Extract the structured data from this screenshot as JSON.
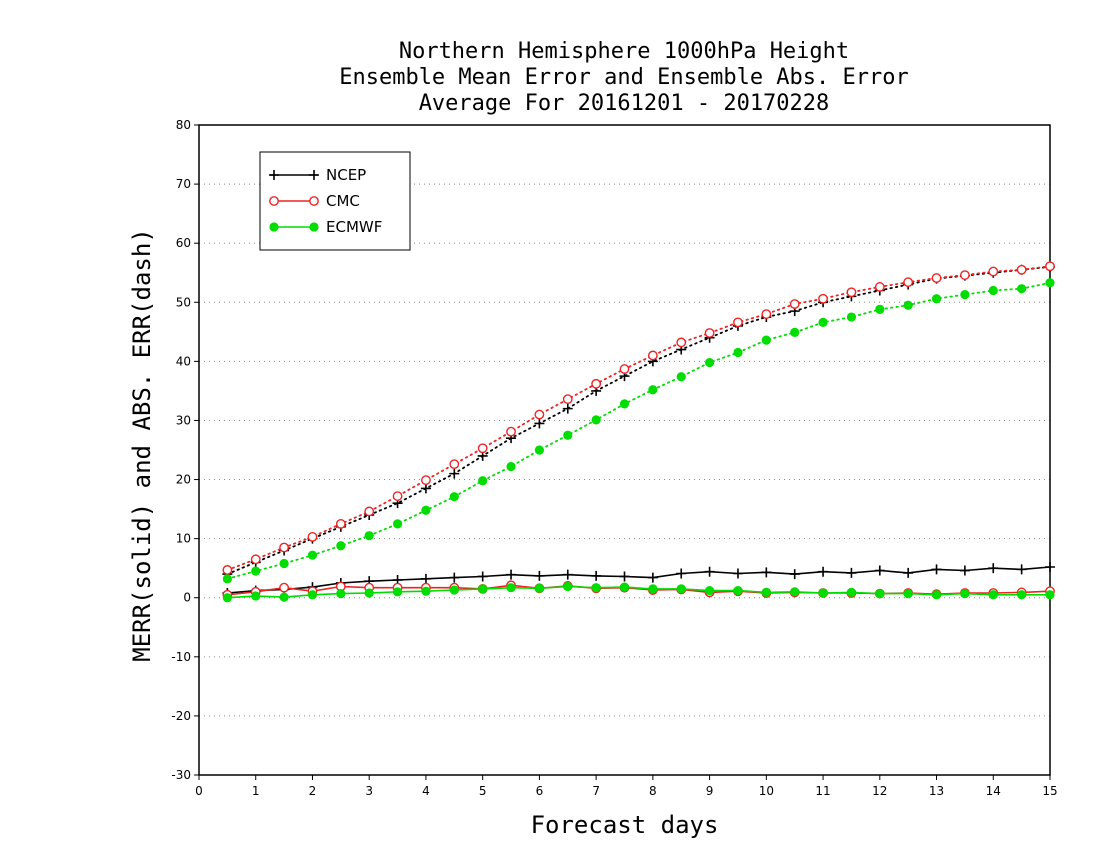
{
  "chart_data": {
    "type": "line",
    "title": [
      "Northern Hemisphere 1000hPa Height",
      "Ensemble Mean Error and Ensemble Abs. Error",
      "Average For 20161201 - 20170228"
    ],
    "xlabel": "Forecast days",
    "ylabel": "MERR(solid) and ABS. ERR(dash)",
    "xlim": [
      0,
      15
    ],
    "ylim": [
      -30,
      80
    ],
    "x_ticks": [
      "0",
      "1",
      "2",
      "3",
      "4",
      "5",
      "6",
      "7",
      "8",
      "9",
      "10",
      "11",
      "12",
      "13",
      "14",
      "15"
    ],
    "y_ticks": [
      "80",
      "70",
      "60",
      "50",
      "40",
      "30",
      "20",
      "10",
      "0",
      "-10",
      "-20",
      "-30"
    ],
    "grid": true,
    "legend_position": "top-left",
    "x": [
      0.5,
      1,
      1.5,
      2,
      2.5,
      3,
      3.5,
      4,
      4.5,
      5,
      5.5,
      6,
      6.5,
      7,
      7.5,
      8,
      8.5,
      9,
      9.5,
      10,
      10.5,
      11,
      11.5,
      12,
      12.5,
      13,
      13.5,
      14,
      14.5,
      15
    ],
    "series": [
      {
        "name": "NCEP",
        "color": "#000000",
        "marker": "plus",
        "merr": [
          0.8,
          1.2,
          1.4,
          1.8,
          2.5,
          2.8,
          3.0,
          3.2,
          3.4,
          3.6,
          3.9,
          3.7,
          3.9,
          3.7,
          3.6,
          3.4,
          4.1,
          4.4,
          4.1,
          4.3,
          4.0,
          4.4,
          4.2,
          4.6,
          4.2,
          4.8,
          4.6,
          5.0,
          4.8,
          5.2
        ],
        "abs_err": [
          4.0,
          6.0,
          8.0,
          10.0,
          12.0,
          14.0,
          16.0,
          18.5,
          21.0,
          24.0,
          27.0,
          29.5,
          32.0,
          35.0,
          37.5,
          40.0,
          42.0,
          44.0,
          46.0,
          47.5,
          48.5,
          50.0,
          51.0,
          52.0,
          53.0,
          54.0,
          54.5,
          55.0,
          55.5,
          56.0
        ]
      },
      {
        "name": "CMC",
        "color": "#ee2222",
        "marker": "circle-open",
        "merr": [
          0.5,
          1.0,
          1.7,
          1.1,
          1.9,
          1.7,
          1.7,
          1.7,
          1.7,
          1.5,
          2.1,
          1.6,
          2.0,
          1.6,
          1.7,
          1.3,
          1.4,
          0.9,
          1.1,
          0.8,
          0.9,
          0.8,
          0.8,
          0.7,
          0.8,
          0.6,
          0.8,
          0.8,
          0.9,
          1.1
        ],
        "abs_err": [
          4.7,
          6.5,
          8.5,
          10.3,
          12.5,
          14.6,
          17.2,
          19.9,
          22.6,
          25.3,
          28.1,
          31.0,
          33.6,
          36.2,
          38.7,
          41.0,
          43.2,
          44.8,
          46.6,
          48.0,
          49.7,
          50.6,
          51.7,
          52.6,
          53.4,
          54.1,
          54.6,
          55.2,
          55.5,
          56.1
        ]
      },
      {
        "name": "ECMWF",
        "color": "#00dd00",
        "marker": "circle-filled",
        "merr": [
          0.0,
          0.3,
          0.1,
          0.5,
          0.7,
          0.8,
          1.0,
          1.1,
          1.3,
          1.5,
          1.7,
          1.6,
          1.9,
          1.7,
          1.8,
          1.5,
          1.5,
          1.2,
          1.2,
          0.9,
          1.0,
          0.8,
          0.9,
          0.7,
          0.7,
          0.5,
          0.7,
          0.5,
          0.5,
          0.5
        ],
        "abs_err": [
          3.2,
          4.5,
          5.8,
          7.2,
          8.8,
          10.5,
          12.5,
          14.8,
          17.1,
          19.8,
          22.2,
          25.0,
          27.5,
          30.1,
          32.8,
          35.2,
          37.4,
          39.8,
          41.5,
          43.6,
          44.9,
          46.6,
          47.5,
          48.8,
          49.5,
          50.6,
          51.3,
          52.0,
          52.3,
          53.3
        ]
      }
    ]
  }
}
